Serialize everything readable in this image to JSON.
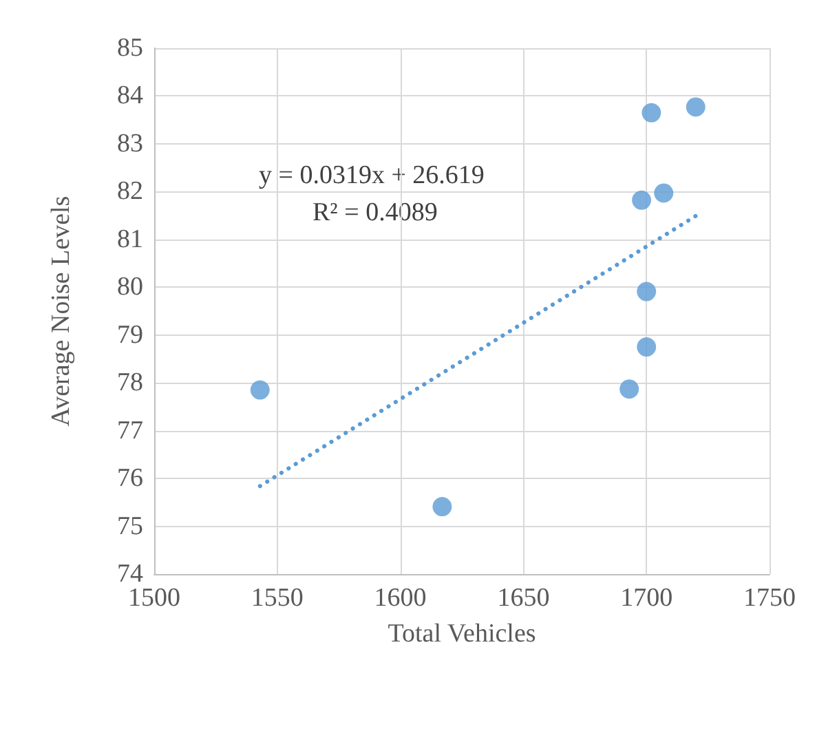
{
  "chart_data": {
    "type": "scatter",
    "xlabel": "Total Vehicles",
    "ylabel": "Average Noise Levels",
    "xlim": [
      1500,
      1750
    ],
    "xticks": [
      1500,
      1550,
      1600,
      1650,
      1700,
      1750
    ],
    "ylim": [
      74,
      85
    ],
    "yticks": [
      74,
      75,
      76,
      77,
      78,
      79,
      80,
      81,
      82,
      83,
      84,
      85
    ],
    "grid": true,
    "marker": "circle",
    "annotations": [
      "y = 0.0319x + 26.619",
      "R² = 0.4089"
    ],
    "series": [
      {
        "color": "#5b9bd5",
        "x": [
          1543,
          1617,
          1693,
          1698,
          1700,
          1700,
          1702,
          1707,
          1720
        ],
        "values": [
          77.85,
          75.41,
          77.87,
          81.82,
          79.91,
          78.75,
          83.65,
          81.97,
          83.77
        ]
      },
      {
        "type": "line",
        "color": "#5b9bd5",
        "line_style": "dotted",
        "marker": "none",
        "x": [
          1543,
          1720
        ],
        "values": [
          75.84,
          81.49
        ]
      }
    ]
  }
}
